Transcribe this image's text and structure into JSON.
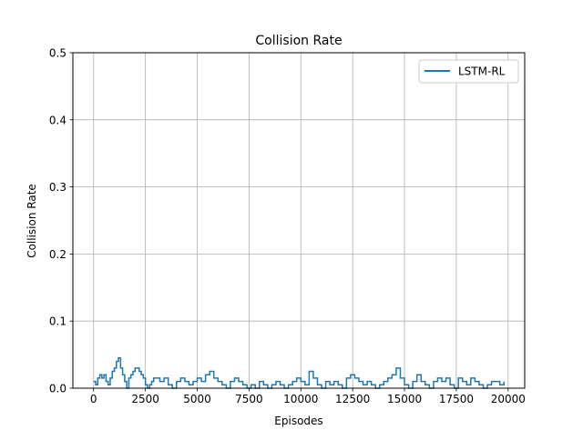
{
  "chart_data": {
    "type": "line",
    "title": "Collision Rate",
    "xlabel": "Episodes",
    "ylabel": "Collision Rate",
    "xlim": [
      -1000,
      20800
    ],
    "ylim": [
      0,
      0.5
    ],
    "xticks": [
      0,
      2500,
      5000,
      7500,
      10000,
      12500,
      15000,
      17500,
      20000
    ],
    "xtick_labels": [
      "0",
      "2500",
      "5000",
      "7500",
      "10000",
      "12500",
      "15000",
      "17500",
      "20000"
    ],
    "yticks": [
      0.0,
      0.1,
      0.2,
      0.3,
      0.4,
      0.5
    ],
    "ytick_labels": [
      "0.0",
      "0.1",
      "0.2",
      "0.3",
      "0.4",
      "0.5"
    ],
    "grid": true,
    "legend_position": "top-right",
    "series": [
      {
        "name": "LSTM-RL",
        "color": "#1f77b4",
        "x": [
          0,
          100,
          200,
          300,
          400,
          500,
          600,
          700,
          800,
          900,
          1000,
          1100,
          1200,
          1300,
          1400,
          1500,
          1600,
          1700,
          1800,
          1900,
          2000,
          2100,
          2200,
          2300,
          2400,
          2500,
          2600,
          2700,
          2800,
          2900,
          3000,
          3200,
          3400,
          3600,
          3800,
          4000,
          4200,
          4400,
          4600,
          4800,
          5000,
          5200,
          5400,
          5600,
          5800,
          6000,
          6200,
          6400,
          6600,
          6800,
          7000,
          7200,
          7400,
          7600,
          7800,
          8000,
          8200,
          8400,
          8600,
          8800,
          9000,
          9200,
          9400,
          9600,
          9800,
          10000,
          10200,
          10400,
          10600,
          10800,
          11000,
          11200,
          11400,
          11600,
          11800,
          12000,
          12200,
          12400,
          12600,
          12800,
          13000,
          13200,
          13400,
          13600,
          13800,
          14000,
          14200,
          14400,
          14600,
          14800,
          15000,
          15200,
          15400,
          15600,
          15800,
          16000,
          16200,
          16400,
          16600,
          16800,
          17000,
          17200,
          17400,
          17600,
          17800,
          18000,
          18200,
          18400,
          18600,
          18800,
          19000,
          19200,
          19400,
          19600,
          19800
        ],
        "y": [
          0.01,
          0.005,
          0.015,
          0.02,
          0.015,
          0.02,
          0.01,
          0.005,
          0.015,
          0.025,
          0.03,
          0.04,
          0.045,
          0.03,
          0.02,
          0.01,
          0.0,
          0.015,
          0.02,
          0.025,
          0.03,
          0.03,
          0.025,
          0.02,
          0.015,
          0.005,
          0.0,
          0.005,
          0.01,
          0.015,
          0.015,
          0.01,
          0.015,
          0.005,
          0.0,
          0.01,
          0.015,
          0.01,
          0.005,
          0.01,
          0.015,
          0.01,
          0.02,
          0.025,
          0.015,
          0.01,
          0.005,
          0.0,
          0.01,
          0.015,
          0.01,
          0.005,
          0.0,
          0.005,
          0.0,
          0.01,
          0.005,
          0.0,
          0.005,
          0.01,
          0.005,
          0.0,
          0.005,
          0.01,
          0.015,
          0.01,
          0.005,
          0.025,
          0.015,
          0.005,
          0.0,
          0.01,
          0.005,
          0.01,
          0.005,
          0.0,
          0.015,
          0.02,
          0.015,
          0.01,
          0.005,
          0.01,
          0.005,
          0.0,
          0.005,
          0.01,
          0.015,
          0.02,
          0.03,
          0.015,
          0.005,
          0.0,
          0.01,
          0.02,
          0.01,
          0.005,
          0.0,
          0.01,
          0.015,
          0.01,
          0.015,
          0.005,
          0.0,
          0.015,
          0.01,
          0.005,
          0.015,
          0.01,
          0.005,
          0.0,
          0.005,
          0.01,
          0.01,
          0.005,
          0.01
        ]
      }
    ]
  }
}
